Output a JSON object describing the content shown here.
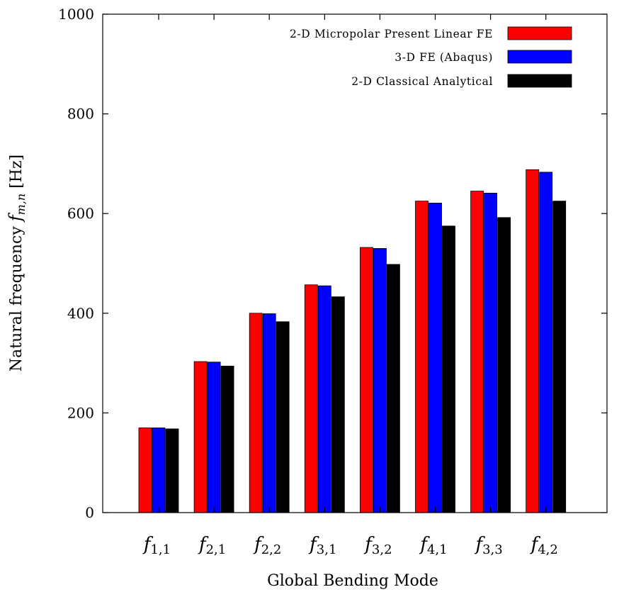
{
  "chart_data": {
    "type": "bar",
    "title": "",
    "xlabel": "Global Bending Mode",
    "ylabel_prefix": "Natural frequency ",
    "ylabel_symbol": "f",
    "ylabel_subscript": "m,n",
    "ylabel_unit": " [Hz]",
    "ylim": [
      0,
      1000
    ],
    "yticks": [
      0,
      200,
      400,
      600,
      800,
      1000
    ],
    "categories": [
      {
        "symbol": "f",
        "sub": "1,1"
      },
      {
        "symbol": "f",
        "sub": "2,1"
      },
      {
        "symbol": "f",
        "sub": "2,2"
      },
      {
        "symbol": "f",
        "sub": "3,1"
      },
      {
        "symbol": "f",
        "sub": "3,2"
      },
      {
        "symbol": "f",
        "sub": "4,1"
      },
      {
        "symbol": "f",
        "sub": "3,3"
      },
      {
        "symbol": "f",
        "sub": "4,2"
      }
    ],
    "series": [
      {
        "name": "2-D Micropolar Present Linear FE",
        "color": "#ff0000",
        "values": [
          170,
          303,
          400,
          457,
          532,
          625,
          645,
          688
        ]
      },
      {
        "name": "3-D FE (Abaqus)",
        "color": "#0000ff",
        "values": [
          170,
          302,
          399,
          455,
          530,
          621,
          641,
          683
        ]
      },
      {
        "name": "2-D Classical Analytical",
        "color": "#000000",
        "values": [
          168,
          294,
          383,
          433,
          498,
          575,
          592,
          625
        ]
      }
    ],
    "legend_position": "top-right",
    "grid": false
  }
}
